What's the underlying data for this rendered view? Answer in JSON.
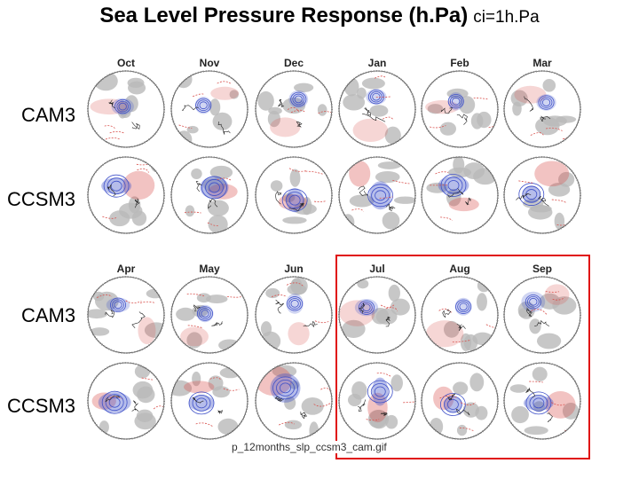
{
  "title": {
    "main": "Sea Level Pressure Response (h.Pa)",
    "ci": "ci=1h.Pa"
  },
  "row_labels": [
    "CAM3",
    "CCSM3",
    "CAM3",
    "CCSM3"
  ],
  "months_top": [
    "Oct",
    "Nov",
    "Dec",
    "Jan",
    "Feb",
    "Mar"
  ],
  "months_bottom": [
    "Apr",
    "May",
    "Jun",
    "Jul",
    "Aug",
    "Sep"
  ],
  "caption": "p_12months_slp_ccsm3_cam.gif",
  "colors": {
    "positive": "#d9534f",
    "negative": "#3f51c9",
    "insignificant_shading": "#b9b9b9",
    "highlight_box": "#e01010"
  },
  "highlighted_months": [
    "Jul",
    "Aug",
    "Sep"
  ]
}
